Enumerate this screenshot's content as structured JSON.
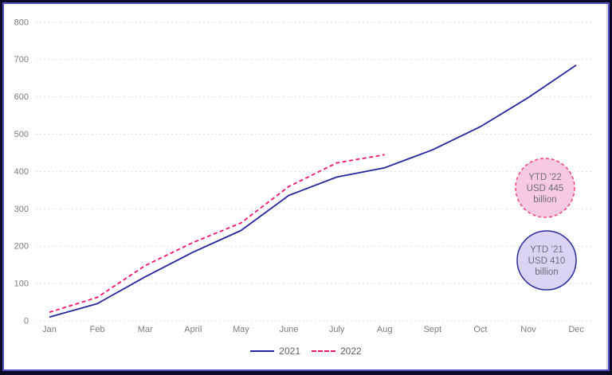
{
  "chart_data": {
    "type": "line",
    "categories": [
      "Jan",
      "Feb",
      "Mar",
      "April",
      "May",
      "June",
      "July",
      "Aug",
      "Sept",
      "Oct",
      "Nov",
      "Dec"
    ],
    "series": [
      {
        "name": "2021",
        "color": "#26269e",
        "style": "solid",
        "values": [
          10,
          46,
          118,
          184,
          242,
          336,
          385,
          410,
          458,
          520,
          598,
          685
        ]
      },
      {
        "name": "2022",
        "color": "#f5146b",
        "style": "dashed",
        "values": [
          23,
          63,
          148,
          210,
          262,
          360,
          423,
          445
        ]
      }
    ],
    "title": "",
    "xlabel": "",
    "ylabel": "",
    "ylim": [
      0,
      800
    ],
    "ytick_interval": 100,
    "grid": "horizontal-dashed",
    "legend_position": "bottom-center",
    "annotations": [
      {
        "id": "ytd-22",
        "lines": [
          "YTD ’22",
          "USD 445",
          "billion"
        ],
        "fill": "#f8c9e3",
        "border_color": "#f0447c",
        "border_style": "dashed",
        "cx": 684,
        "cy": 236,
        "r": 37
      },
      {
        "id": "ytd-21",
        "lines": [
          "YTD ’21",
          "USD 410",
          "billion"
        ],
        "fill": "#dad3f3",
        "border_color": "#2b2b9e",
        "border_style": "solid",
        "cx": 686,
        "cy": 327,
        "r": 37
      }
    ]
  },
  "colors": {
    "grid": "#e0e0e0",
    "tick_text": "#7d7d7d",
    "legend_text": "#5f5f5f",
    "frame_outer": "#0b0b28",
    "frame_inner_border": "#554fc6"
  }
}
